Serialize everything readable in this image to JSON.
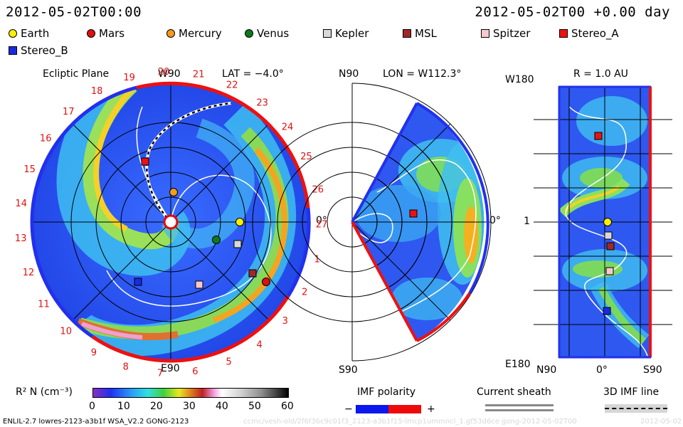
{
  "header": {
    "left_time": "2012-05-02T00:00",
    "right_time": "2012-05-02T00 +0.00 day"
  },
  "legend": [
    {
      "label": "Earth",
      "color": "#ffee00",
      "shape": "circle"
    },
    {
      "label": "Mars",
      "color": "#e01010",
      "shape": "circle"
    },
    {
      "label": "Mercury",
      "color": "#f59a1a",
      "shape": "circle"
    },
    {
      "label": "Venus",
      "color": "#0c7a1a",
      "shape": "circle"
    },
    {
      "label": "Kepler",
      "color": "#d8d8d8",
      "shape": "square"
    },
    {
      "label": "MSL",
      "color": "#a02828",
      "shape": "square"
    },
    {
      "label": "Spitzer",
      "color": "#f8c8cc",
      "shape": "square"
    },
    {
      "label": "Stereo_A",
      "color": "#ee1111",
      "shape": "square"
    },
    {
      "label": "Stereo_B",
      "color": "#1a2ae0",
      "shape": "square"
    }
  ],
  "ecliptic": {
    "title": "Ecliptic Plane",
    "top_label": "W90",
    "lat_label": "LAT = −4.0°",
    "bottom_label": "E90",
    "right_label": "0°",
    "rotation_numbers": [
      "19",
      "20",
      "21",
      "22",
      "23",
      "24",
      "25",
      "26",
      "27",
      "1",
      "2",
      "3",
      "4",
      "5",
      "6",
      "7",
      "8",
      "9",
      "10",
      "11",
      "12",
      "13",
      "14",
      "15",
      "16",
      "17",
      "18"
    ]
  },
  "meridional": {
    "top_label": "N90",
    "lon_label": "LON = W112.3°",
    "bottom_label": "S90",
    "right_label": "0°"
  },
  "radial": {
    "r_label": "R = 1.0 AU",
    "top_left": "W180",
    "mid_left": "1",
    "bottom_left": "E180",
    "x_labels": [
      "N90",
      "0°",
      "S90"
    ]
  },
  "colorbar": {
    "label": "R² N (cm⁻³)",
    "ticks": [
      "0",
      "10",
      "20",
      "30",
      "40",
      "50",
      "60"
    ]
  },
  "imf": {
    "polarity_title": "IMF polarity",
    "minus": "−",
    "plus": "+",
    "neg_color": "#0a18ee",
    "pos_color": "#ee0a0a",
    "current_sheath": "Current sheath",
    "imf_line": "3D IMF line"
  },
  "footer": {
    "model": "ENLIL-2.7 lowres-2123-a3b1f WSA_V2.2 GONG-2123",
    "run_id": "ccmc/vesh-old/2f6f36c9c01f3_2123-a3b1f15-lmcp1ummncl_1.gf53d6ce gong-2012-05-02T00",
    "date": "2012-05-02"
  }
}
